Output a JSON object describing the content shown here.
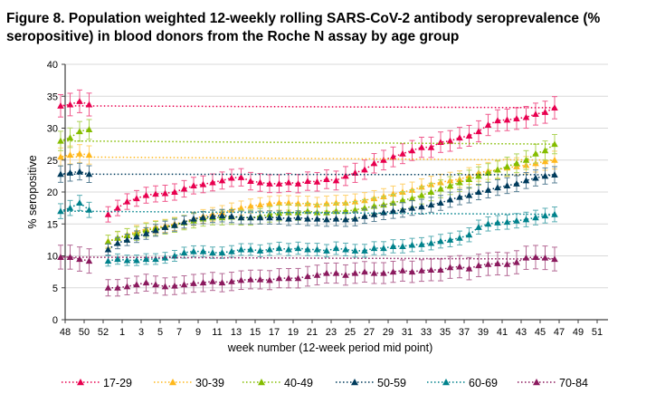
{
  "figure": {
    "title": "Figure 8. Population weighted 12-weekly rolling SARS-CoV-2 antibody seroprevalence (% seropositive) in blood donors from the Roche N assay by age group"
  },
  "chart_data": {
    "type": "line",
    "title": "Figure 8. Population weighted 12-weekly rolling SARS-CoV-2 antibody seroprevalence (% seropositive) in blood donors from the Roche N assay by age group",
    "xlabel": "week number (12-week period mid point)",
    "ylabel": "% seropositive",
    "ylim": [
      0,
      40
    ],
    "yticks": [
      0,
      5,
      10,
      15,
      20,
      25,
      30,
      35,
      40
    ],
    "xtick_labels": [
      "48",
      "50",
      "52",
      "1",
      "3",
      "5",
      "7",
      "9",
      "11",
      "13",
      "15",
      "17",
      "19",
      "21",
      "23",
      "25",
      "27",
      "29",
      "31",
      "33",
      "35",
      "37",
      "39",
      "41",
      "43",
      "45",
      "47",
      "49",
      "51"
    ],
    "x_weeks": [
      53,
      1,
      2,
      3,
      4,
      5,
      6,
      7,
      8,
      9,
      10,
      11,
      12,
      13,
      14,
      15,
      16,
      17,
      18,
      19,
      20,
      21,
      22,
      23,
      24,
      25,
      26,
      27,
      28,
      29,
      30,
      31,
      32,
      33,
      34,
      35,
      36,
      37,
      38,
      39,
      40,
      41,
      42,
      43,
      44,
      45,
      46,
      47,
      48,
      49,
      50,
      51
    ],
    "grid": true,
    "legend_position": "bottom",
    "error_bars": true,
    "series": [
      {
        "name": "17-29",
        "color": "#e8004f",
        "values": [
          16.5,
          17.5,
          18.5,
          19.0,
          19.5,
          19.7,
          19.8,
          20.0,
          20.5,
          21.0,
          21.2,
          21.5,
          21.8,
          22.2,
          22.3,
          21.7,
          21.5,
          21.3,
          21.3,
          21.5,
          21.3,
          21.7,
          21.6,
          22.0,
          21.8,
          22.5,
          23.0,
          23.5,
          24.5,
          25.0,
          25.5,
          26.0,
          26.5,
          27.0,
          27.0,
          27.8,
          28.0,
          28.5,
          28.8,
          29.5,
          30.5,
          31.2,
          31.3,
          31.5,
          31.7,
          32.2,
          32.5,
          33.2,
          33.5,
          33.7,
          34.2,
          33.7
        ],
        "err": 1.5
      },
      {
        "name": "30-39",
        "color": "#ffb81c",
        "values": [
          12.3,
          12.8,
          13.3,
          13.8,
          14.2,
          14.5,
          14.7,
          15.0,
          15.3,
          15.8,
          16.2,
          16.5,
          16.8,
          17.2,
          17.5,
          17.8,
          18.0,
          18.2,
          18.3,
          18.3,
          18.2,
          18.2,
          18.0,
          18.2,
          18.3,
          18.3,
          18.5,
          18.7,
          19.0,
          19.3,
          19.7,
          20.0,
          20.3,
          20.8,
          21.2,
          21.5,
          21.8,
          22.0,
          22.5,
          23.0,
          23.3,
          23.5,
          23.8,
          24.0,
          24.2,
          24.5,
          24.8,
          25.0,
          25.5,
          25.8,
          26.0,
          25.8
        ],
        "err": 1.2
      },
      {
        "name": "40-49",
        "color": "#84bd00",
        "values": [
          12.2,
          12.8,
          13.2,
          13.5,
          14.0,
          14.3,
          14.5,
          14.8,
          15.2,
          15.5,
          15.8,
          16.0,
          16.0,
          16.1,
          16.0,
          16.0,
          16.2,
          16.5,
          16.7,
          16.8,
          16.8,
          17.0,
          16.8,
          16.8,
          17.0,
          17.0,
          17.2,
          17.5,
          17.8,
          18.0,
          18.3,
          18.7,
          19.0,
          19.5,
          20.0,
          20.5,
          21.0,
          21.5,
          22.0,
          22.5,
          23.0,
          23.5,
          24.0,
          24.5,
          25.0,
          26.0,
          26.5,
          27.5,
          28.0,
          28.5,
          29.5,
          29.8
        ],
        "err": 1.3
      },
      {
        "name": "50-59",
        "color": "#003b5c",
        "values": [
          11.0,
          12.0,
          12.5,
          13.0,
          13.5,
          14.0,
          14.5,
          14.8,
          15.3,
          15.8,
          16.0,
          16.2,
          16.3,
          16.2,
          16.0,
          16.0,
          16.0,
          16.0,
          16.0,
          15.8,
          16.0,
          15.8,
          15.8,
          15.7,
          15.8,
          15.7,
          15.8,
          16.2,
          16.5,
          16.8,
          17.0,
          17.2,
          17.5,
          17.7,
          18.0,
          18.3,
          18.8,
          19.2,
          19.5,
          20.0,
          20.3,
          20.7,
          21.0,
          21.3,
          21.8,
          22.2,
          22.5,
          22.7,
          22.8,
          23.0,
          23.2,
          22.8
        ],
        "err": 1.1
      },
      {
        "name": "60-69",
        "color": "#00828c",
        "values": [
          9.2,
          9.5,
          9.3,
          9.3,
          9.5,
          9.5,
          9.7,
          10.0,
          10.5,
          10.7,
          10.7,
          10.5,
          10.5,
          10.7,
          11.0,
          11.0,
          10.8,
          11.0,
          11.2,
          11.0,
          11.2,
          11.0,
          11.0,
          10.8,
          11.2,
          11.0,
          10.8,
          10.8,
          11.2,
          11.2,
          11.5,
          11.5,
          11.7,
          11.8,
          12.0,
          12.3,
          12.5,
          12.8,
          13.3,
          14.5,
          15.0,
          15.2,
          15.3,
          15.5,
          15.7,
          16.0,
          16.3,
          16.5,
          17.0,
          17.5,
          18.3,
          17.2
        ],
        "err": 1.0
      },
      {
        "name": "70-84",
        "color": "#8b1a5e",
        "values": [
          5.0,
          5.0,
          5.2,
          5.5,
          5.8,
          5.5,
          5.2,
          5.3,
          5.5,
          5.7,
          5.8,
          6.0,
          5.8,
          6.0,
          6.2,
          6.3,
          6.3,
          6.2,
          6.5,
          6.5,
          6.5,
          6.8,
          7.0,
          7.3,
          7.3,
          7.0,
          7.3,
          7.5,
          7.3,
          7.3,
          7.5,
          7.7,
          7.5,
          7.7,
          7.8,
          7.8,
          8.2,
          8.3,
          8.0,
          8.5,
          8.7,
          8.8,
          8.7,
          9.0,
          9.7,
          9.8,
          9.7,
          9.5,
          9.8,
          9.8,
          9.5,
          9.2
        ],
        "err": 1.6
      }
    ]
  }
}
